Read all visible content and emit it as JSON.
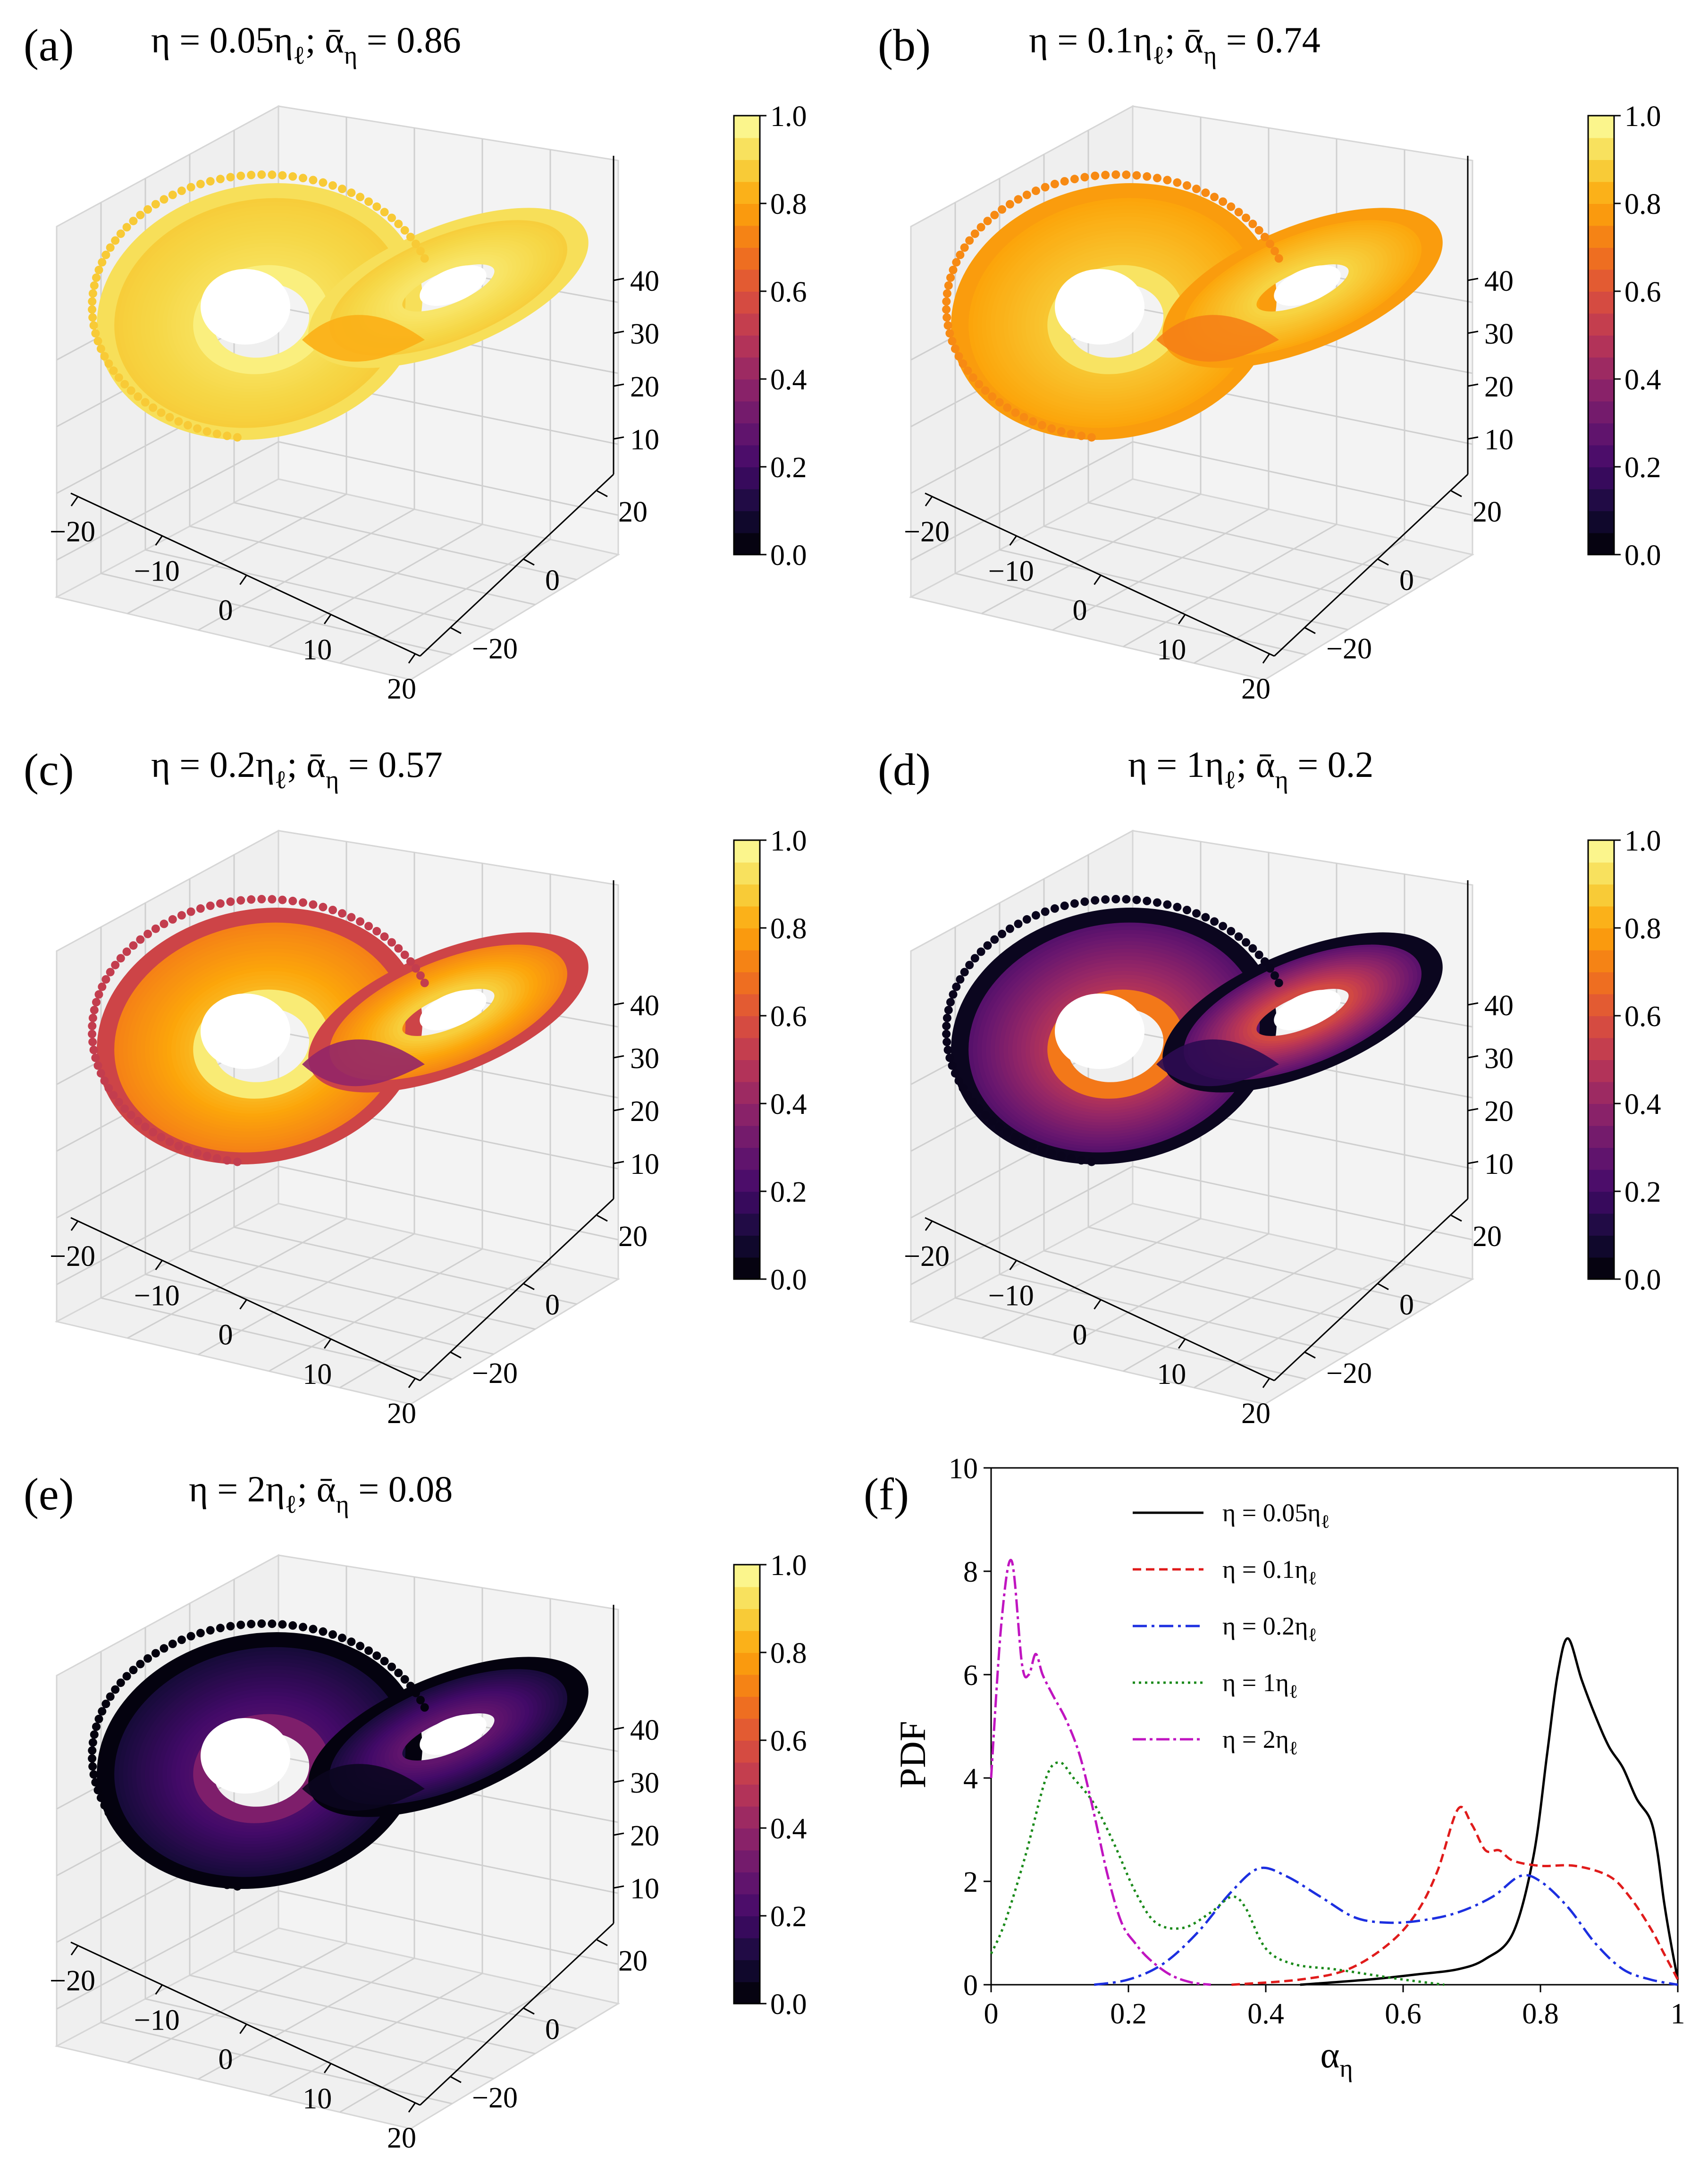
{
  "panels": [
    {
      "label": "(a)",
      "title_main": "η = 0.05η",
      "title_sub": "ℓ",
      "title_tail": "; ᾱ",
      "title_sub2": "η",
      "title_val": " = 0.86",
      "theme": "bright"
    },
    {
      "label": "(b)",
      "title_main": "η = 0.1η",
      "title_sub": "ℓ",
      "title_tail": "; ᾱ",
      "title_sub2": "η",
      "title_val": " = 0.74",
      "theme": "bright2"
    },
    {
      "label": "(c)",
      "title_main": "η = 0.2η",
      "title_sub": "ℓ",
      "title_tail": "; ᾱ",
      "title_sub2": "η",
      "title_val": " = 0.57",
      "theme": "mid"
    },
    {
      "label": "(d)",
      "title_main": "η = 1η",
      "title_sub": "ℓ",
      "title_tail": "; ᾱ",
      "title_sub2": "η",
      "title_val": " = 0.2",
      "theme": "dark"
    },
    {
      "label": "(e)",
      "title_main": "η = 2η",
      "title_sub": "ℓ",
      "title_tail": "; ᾱ",
      "title_sub2": "η",
      "title_val": " = 0.08",
      "theme": "darkest"
    }
  ],
  "axes3d": {
    "x_ticks": [
      "−20",
      "−10",
      "0",
      "10",
      "20"
    ],
    "y_ticks": [
      "−20",
      "0",
      "20"
    ],
    "z_ticks": [
      "10",
      "20",
      "30",
      "40"
    ]
  },
  "colorbar": {
    "ticks": [
      "0.0",
      "0.2",
      "0.4",
      "0.6",
      "0.8",
      "1.0"
    ],
    "colormap": "inferno"
  },
  "pdf_panel": {
    "label": "(f)",
    "xlabel": "α",
    "xlabel_sub": "η",
    "ylabel": "PDF"
  },
  "chart_data": {
    "type": "line",
    "title": "",
    "xlabel": "α_η",
    "ylabel": "PDF",
    "xlim": [
      0,
      1
    ],
    "ylim": [
      0,
      10
    ],
    "x_ticks": [
      "0",
      "0.2",
      "0.4",
      "0.6",
      "0.8",
      "1"
    ],
    "y_ticks": [
      "0",
      "2",
      "4",
      "6",
      "8",
      "10"
    ],
    "legend_position": "top-center",
    "series": [
      {
        "name": "η = 0.05η",
        "name_sub": "ℓ",
        "color": "#000000",
        "dash": "solid",
        "x": [
          0.45,
          0.55,
          0.62,
          0.68,
          0.72,
          0.76,
          0.79,
          0.81,
          0.825,
          0.84,
          0.86,
          0.88,
          0.9,
          0.92,
          0.94,
          0.96,
          0.97,
          0.98,
          0.99,
          1.0
        ],
        "y": [
          0.0,
          0.1,
          0.2,
          0.3,
          0.5,
          1.0,
          2.5,
          4.5,
          6.0,
          6.7,
          5.9,
          5.2,
          4.6,
          4.2,
          3.6,
          3.2,
          2.6,
          1.6,
          0.8,
          0.1
        ]
      },
      {
        "name": "η = 0.1η",
        "name_sub": "ℓ",
        "color": "#e01b1b",
        "dash": "18,10",
        "x": [
          0.35,
          0.45,
          0.52,
          0.58,
          0.62,
          0.65,
          0.68,
          0.7,
          0.72,
          0.74,
          0.76,
          0.8,
          0.85,
          0.9,
          0.93,
          0.96,
          0.98,
          1.0
        ],
        "y": [
          0.0,
          0.1,
          0.3,
          0.8,
          1.4,
          2.2,
          3.4,
          3.1,
          2.6,
          2.6,
          2.4,
          2.3,
          2.3,
          2.1,
          1.7,
          1.1,
          0.6,
          0.1
        ]
      },
      {
        "name": "η = 0.2η",
        "name_sub": "ℓ",
        "color": "#1c2fe0",
        "dash": "30,10,6,10",
        "x": [
          0.15,
          0.2,
          0.25,
          0.3,
          0.35,
          0.39,
          0.43,
          0.48,
          0.53,
          0.58,
          0.63,
          0.68,
          0.73,
          0.77,
          0.8,
          0.84,
          0.88,
          0.92,
          0.96,
          1.0
        ],
        "y": [
          0.0,
          0.1,
          0.4,
          1.0,
          1.8,
          2.25,
          2.1,
          1.7,
          1.3,
          1.2,
          1.25,
          1.4,
          1.7,
          2.1,
          2.0,
          1.5,
          0.8,
          0.3,
          0.1,
          0.0
        ]
      },
      {
        "name": "η = 1η",
        "name_sub": "ℓ",
        "color": "#1a8a1a",
        "dash": "5,8",
        "x": [
          0.0,
          0.02,
          0.05,
          0.08,
          0.1,
          0.12,
          0.15,
          0.18,
          0.21,
          0.24,
          0.28,
          0.32,
          0.35,
          0.37,
          0.4,
          0.44,
          0.5,
          0.55,
          0.6,
          0.66
        ],
        "y": [
          0.6,
          1.2,
          2.5,
          4.0,
          4.3,
          4.0,
          3.5,
          2.7,
          1.8,
          1.2,
          1.1,
          1.4,
          1.7,
          1.5,
          0.7,
          0.4,
          0.3,
          0.2,
          0.1,
          0.0
        ]
      },
      {
        "name": "η = 2η",
        "name_sub": "ℓ",
        "color": "#c015c0",
        "dash": "28,8,6,8",
        "x": [
          0.0,
          0.015,
          0.03,
          0.045,
          0.055,
          0.065,
          0.075,
          0.09,
          0.11,
          0.13,
          0.15,
          0.17,
          0.19,
          0.21,
          0.23,
          0.26,
          0.29,
          0.32
        ],
        "y": [
          4.0,
          7.0,
          8.2,
          6.2,
          6.0,
          6.4,
          6.0,
          5.6,
          5.1,
          4.4,
          3.3,
          2.1,
          1.2,
          0.8,
          0.5,
          0.2,
          0.05,
          0.0
        ]
      }
    ]
  }
}
